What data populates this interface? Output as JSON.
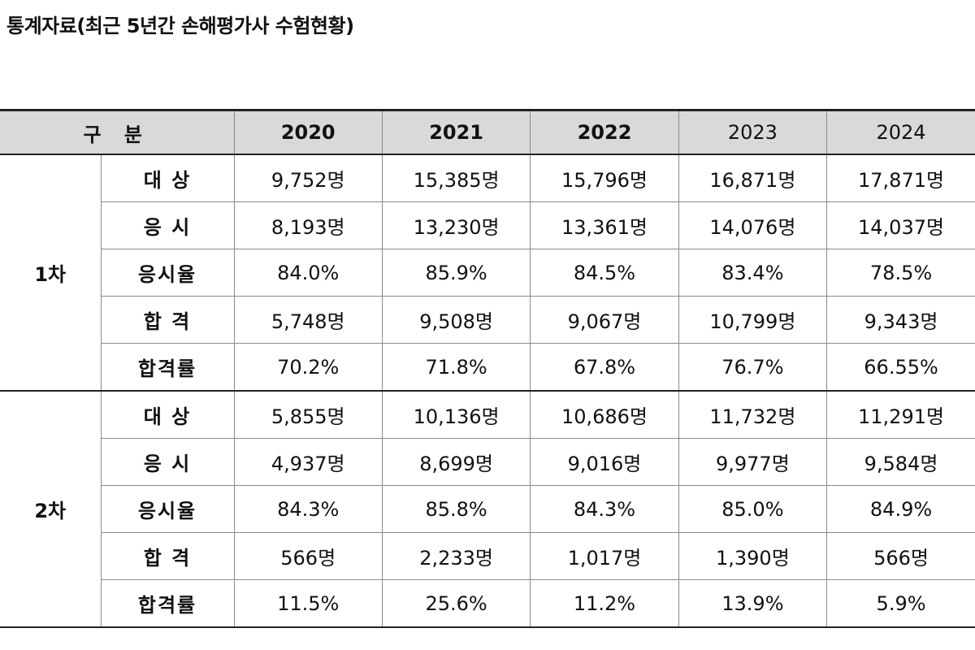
{
  "title": "통계자료(최근 5년간 손해평가사 수험현황)",
  "table": {
    "header_label": "구 분",
    "years": [
      "2020",
      "2021",
      "2022",
      "2023",
      "2024"
    ],
    "groups": [
      {
        "round": "1차",
        "rows": [
          {
            "item": "대 상",
            "values": [
              "9,752명",
              "15,385명",
              "15,796명",
              "16,871명",
              "17,871명"
            ]
          },
          {
            "item": "응 시",
            "values": [
              "8,193명",
              "13,230명",
              "13,361명",
              "14,076명",
              "14,037명"
            ]
          },
          {
            "item": "응시율",
            "values": [
              "84.0%",
              "85.9%",
              "84.5%",
              "83.4%",
              "78.5%"
            ]
          },
          {
            "item": "합 격",
            "values": [
              "5,748명",
              "9,508명",
              "9,067명",
              "10,799명",
              "9,343명"
            ]
          },
          {
            "item": "합격률",
            "values": [
              "70.2%",
              "71.8%",
              "67.8%",
              "76.7%",
              "66.55%"
            ]
          }
        ]
      },
      {
        "round": "2차",
        "rows": [
          {
            "item": "대 상",
            "values": [
              "5,855명",
              "10,136명",
              "10,686명",
              "11,732명",
              "11,291명"
            ]
          },
          {
            "item": "응 시",
            "values": [
              "4,937명",
              "8,699명",
              "9,016명",
              "9,977명",
              "9,584명"
            ]
          },
          {
            "item": "응시율",
            "values": [
              "84.3%",
              "85.8%",
              "84.3%",
              "85.0%",
              "84.9%"
            ]
          },
          {
            "item": "합 격",
            "values": [
              "566명",
              "2,233명",
              "1,017명",
              "1,390명",
              "566명"
            ]
          },
          {
            "item": "합격률",
            "values": [
              "11.5%",
              "25.6%",
              "11.2%",
              "13.9%",
              "5.9%"
            ]
          }
        ]
      }
    ]
  }
}
